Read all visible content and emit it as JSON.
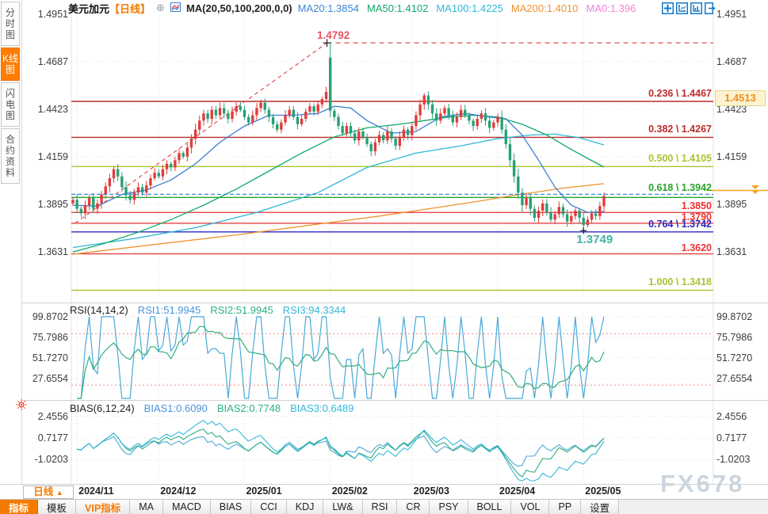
{
  "app": {
    "watermark": "FX678"
  },
  "sidebar": {
    "tabs": [
      {
        "label": "分时图",
        "active": false
      },
      {
        "label": "K线图",
        "active": true
      },
      {
        "label": "闪电图",
        "active": false
      },
      {
        "label": "合约资料",
        "active": false
      }
    ]
  },
  "header": {
    "symbol": "美元加元",
    "period": "【日线】",
    "add_icon": "⊕",
    "ma_title": "MA(20,50,100,200,0,0)",
    "ma_items": [
      {
        "text": "MA20:1.3854",
        "color": "#3d85d8"
      },
      {
        "text": "MA50:1.4102",
        "color": "#10a96a"
      },
      {
        "text": "MA100:1.4225",
        "color": "#2fb7d8"
      },
      {
        "text": "MA200:1.4010",
        "color": "#f0922e"
      },
      {
        "text": "MA0:1.396",
        "color": "#ef82d5"
      }
    ],
    "tool_icons": [
      "move-icon",
      "axis-scale-icon",
      "axis-shift-icon",
      "pane-exit-icon"
    ]
  },
  "main_chart": {
    "y_axis": [
      "1.4951",
      "1.4687",
      "1.4423",
      "1.4159",
      "1.3895",
      "1.3631"
    ],
    "fib_levels": [
      {
        "label": "0.236 \\ 1.4467",
        "price": 1.4467,
        "color": "#bb2b2b"
      },
      {
        "label": "0.382 \\ 1.4267",
        "price": 1.4267,
        "color": "#bb2b2b"
      },
      {
        "label": "0.500 \\ 1.4105",
        "price": 1.4105,
        "color": "#a9c431"
      },
      {
        "label": "0.618 \\ 1.3942",
        "price": 1.3942,
        "color": "#27a42a"
      },
      {
        "label": "0.764 \\ 1.3742",
        "price": 1.3742,
        "color": "#2a2ac4"
      },
      {
        "label": "1.000 \\ 1.3418",
        "price": 1.3418,
        "color": "#a9c431"
      }
    ],
    "price_lines": [
      {
        "label": "1.3850",
        "price": 1.385
      },
      {
        "label": "1.3790",
        "price": 1.379
      },
      {
        "label": "1.3620",
        "price": 1.362
      }
    ],
    "peak_annotation": {
      "label": "1.4792",
      "price": 1.4792,
      "color": "#e8555f"
    },
    "low_annotation": {
      "label": "1.3749",
      "price": 1.3749,
      "color": "#45b2a5"
    },
    "axis_flag": {
      "label": "1.4513",
      "color": "#f08c1e"
    },
    "last_price": {
      "value": 1.3942,
      "color": "#2b7fd0"
    },
    "marker_color": "#f2a51a"
  },
  "chart_data": {
    "type": "candlestick",
    "title": "USD/CAD daily — candles with MA20/50/100/200, Fibonacci retracement, RSI(14,14,2), BIAS(6,12,24)",
    "price_range": {
      "top": 1.4951,
      "bottom": 1.3631
    },
    "x_months": [
      {
        "label": "2024/11",
        "day": 1
      },
      {
        "label": "2024/12",
        "day": 21
      },
      {
        "label": "2025/01",
        "day": 42
      },
      {
        "label": "2025/02",
        "day": 63
      },
      {
        "label": "2025/03",
        "day": 83
      },
      {
        "label": "2025/04",
        "day": 104
      },
      {
        "label": "2025/05",
        "day": 125
      }
    ],
    "closes": [
      1.392,
      1.387,
      1.3845,
      1.389,
      1.393,
      1.387,
      1.39,
      1.395,
      1.3995,
      1.404,
      1.409,
      1.405,
      1.399,
      1.3945,
      1.392,
      1.396,
      1.399,
      1.396,
      1.4,
      1.404,
      1.407,
      1.405,
      1.409,
      1.412,
      1.41,
      1.414,
      1.418,
      1.416,
      1.421,
      1.426,
      1.431,
      1.436,
      1.44,
      1.437,
      1.442,
      1.439,
      1.443,
      1.44,
      1.437,
      1.441,
      1.444,
      1.442,
      1.438,
      1.435,
      1.439,
      1.443,
      1.446,
      1.442,
      1.438,
      1.434,
      1.431,
      1.435,
      1.439,
      1.442,
      1.438,
      1.434,
      1.437,
      1.441,
      1.444,
      1.441,
      1.445,
      1.448,
      1.452,
      1.4415,
      1.438,
      1.433,
      1.429,
      1.433,
      1.429,
      1.425,
      1.43,
      1.427,
      1.423,
      1.419,
      1.424,
      1.428,
      1.425,
      1.43,
      1.426,
      1.422,
      1.427,
      1.431,
      1.428,
      1.433,
      1.439,
      1.445,
      1.45,
      1.445,
      1.44,
      1.436,
      1.44,
      1.443,
      1.439,
      1.435,
      1.438,
      1.442,
      1.439,
      1.436,
      1.433,
      1.437,
      1.44,
      1.436,
      1.432,
      1.435,
      1.438,
      1.431,
      1.423,
      1.414,
      1.405,
      1.396,
      1.389,
      1.393,
      1.387,
      1.382,
      1.386,
      1.39,
      1.385,
      1.381,
      1.384,
      1.388,
      1.384,
      1.38,
      1.383,
      1.386,
      1.382,
      1.378,
      1.381,
      1.3845,
      1.383,
      1.3885,
      1.3942
    ],
    "special_bars": {
      "10": {
        "h": 1.4105
      },
      "63": {
        "o": 1.471,
        "h": 1.4792,
        "l": 1.438
      },
      "86": {
        "h": 1.4513
      },
      "125": {
        "l": 1.3749
      },
      "130": {
        "h": 1.3962
      }
    },
    "up_color": "#e23b3b",
    "down_color": "#27a077",
    "trendline": {
      "from_day": 0.5,
      "from_price": 1.379,
      "to_day": 62.2,
      "to_price": 1.4792,
      "color": "#e05050"
    },
    "ma_lines": [
      {
        "name": "MA200",
        "color": "#f0922e",
        "points": [
          [
            0,
            1.3618
          ],
          [
            20,
            1.3672
          ],
          [
            40,
            1.3725
          ],
          [
            60,
            1.3785
          ],
          [
            75,
            1.383
          ],
          [
            90,
            1.388
          ],
          [
            100,
            1.3915
          ],
          [
            108,
            1.3945
          ],
          [
            114,
            1.3965
          ],
          [
            120,
            1.3985
          ],
          [
            126,
            1.4
          ],
          [
            130,
            1.401
          ]
        ]
      },
      {
        "name": "MA100",
        "color": "#2fb7d8",
        "points": [
          [
            0,
            1.3655
          ],
          [
            15,
            1.3705
          ],
          [
            30,
            1.3765
          ],
          [
            45,
            1.385
          ],
          [
            60,
            1.396
          ],
          [
            72,
            1.41
          ],
          [
            84,
            1.418
          ],
          [
            95,
            1.422
          ],
          [
            104,
            1.426
          ],
          [
            112,
            1.428
          ],
          [
            118,
            1.4285
          ],
          [
            124,
            1.4265
          ],
          [
            130,
            1.4225
          ]
        ]
      },
      {
        "name": "MA50",
        "color": "#10a96a",
        "points": [
          [
            0,
            1.363
          ],
          [
            8,
            1.368
          ],
          [
            16,
            1.374
          ],
          [
            24,
            1.381
          ],
          [
            32,
            1.389
          ],
          [
            40,
            1.398
          ],
          [
            48,
            1.408
          ],
          [
            56,
            1.418
          ],
          [
            64,
            1.427
          ],
          [
            72,
            1.432
          ],
          [
            80,
            1.434
          ],
          [
            86,
            1.436
          ],
          [
            92,
            1.438
          ],
          [
            98,
            1.439
          ],
          [
            104,
            1.438
          ],
          [
            110,
            1.434
          ],
          [
            116,
            1.428
          ],
          [
            122,
            1.42
          ],
          [
            126,
            1.415
          ],
          [
            130,
            1.4102
          ]
        ]
      },
      {
        "name": "MA20",
        "color": "#3b7fd4",
        "points": [
          [
            0,
            1.389
          ],
          [
            6,
            1.3885
          ],
          [
            12,
            1.395
          ],
          [
            18,
            1.3975
          ],
          [
            24,
            1.403
          ],
          [
            30,
            1.412
          ],
          [
            36,
            1.424
          ],
          [
            42,
            1.433
          ],
          [
            48,
            1.439
          ],
          [
            54,
            1.439
          ],
          [
            60,
            1.44
          ],
          [
            64,
            1.444
          ],
          [
            68,
            1.443
          ],
          [
            72,
            1.436
          ],
          [
            78,
            1.429
          ],
          [
            84,
            1.43
          ],
          [
            90,
            1.438
          ],
          [
            96,
            1.44
          ],
          [
            102,
            1.438
          ],
          [
            106,
            1.437
          ],
          [
            110,
            1.428
          ],
          [
            114,
            1.414
          ],
          [
            118,
            1.399
          ],
          [
            122,
            1.389
          ],
          [
            126,
            1.385
          ],
          [
            130,
            1.3854
          ]
        ]
      }
    ],
    "rsi": {
      "periods": [
        14,
        14,
        2
      ],
      "overbought": 80,
      "oversold": 20,
      "colors": [
        "#4aa9d8",
        "#2fae7e",
        "#4aa9d8"
      ]
    },
    "bias": {
      "periods": [
        6,
        12,
        24
      ],
      "colors": [
        "#4aa9d8",
        "#2fae7e",
        "#35b8d8"
      ]
    }
  },
  "rsi_panel": {
    "title": "RSI(14,14,2)",
    "items": [
      {
        "text": "RSI1:51.9945",
        "color": "#4a93d9"
      },
      {
        "text": "RSI2:51.9945",
        "color": "#2db27d"
      },
      {
        "text": "RSI3:94.3344",
        "color": "#35b8d8"
      }
    ],
    "y_axis": [
      "99.8702",
      "75.7986",
      "51.7270",
      "27.6554"
    ]
  },
  "bias_panel": {
    "title": "BIAS(6,12,24)",
    "items": [
      {
        "text": "BIAS1:0.6090",
        "color": "#4a93d9"
      },
      {
        "text": "BIAS2:0.7748",
        "color": "#2db27d"
      },
      {
        "text": "BIAS3:0.6489",
        "color": "#35b8d8"
      }
    ],
    "y_axis": [
      "2.4556",
      "0.7177",
      "-1.0203"
    ]
  },
  "toolbar": {
    "period": {
      "label": "日线",
      "arrow": "▲"
    },
    "buttons": [
      {
        "label": "指标",
        "style": "active"
      },
      {
        "label": "模板",
        "style": "normal"
      },
      {
        "label": "VIP指标",
        "style": "vip"
      },
      {
        "label": "MA",
        "style": "normal"
      },
      {
        "label": "MACD",
        "style": "normal"
      },
      {
        "label": "BIAS",
        "style": "normal"
      },
      {
        "label": "CCI",
        "style": "normal"
      },
      {
        "label": "KDJ",
        "style": "normal"
      },
      {
        "label": "LW&",
        "style": "normal"
      },
      {
        "label": "RSI",
        "style": "normal"
      },
      {
        "label": "CR",
        "style": "normal"
      },
      {
        "label": "PSY",
        "style": "normal"
      },
      {
        "label": "BOLL",
        "style": "normal"
      },
      {
        "label": "VOL",
        "style": "normal"
      },
      {
        "label": "PP",
        "style": "normal"
      },
      {
        "label": "设置",
        "style": "normal"
      }
    ]
  }
}
